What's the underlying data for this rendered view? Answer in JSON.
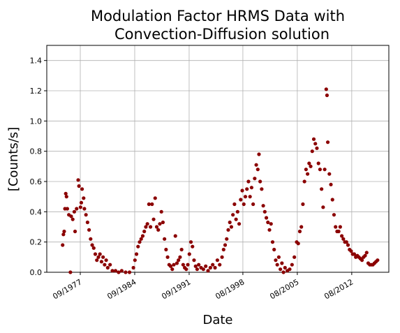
{
  "chart_data": {
    "type": "scatter",
    "title": [
      "Modulation Factor HRMS Data with",
      "Convection-Diffusion solution"
    ],
    "xlabel": "Date",
    "ylabel": "[Counts/s]",
    "color": "#8b0000",
    "grid": true,
    "xlim": [
      1973.36,
      2017.35
    ],
    "ylim": [
      0,
      1.5
    ],
    "xticks": [
      {
        "value": 1977.67,
        "label": "09/1977"
      },
      {
        "value": 1984.67,
        "label": "09/1984"
      },
      {
        "value": 1991.67,
        "label": "09/1991"
      },
      {
        "value": 1998.58,
        "label": "08/1998"
      },
      {
        "value": 2005.58,
        "label": "08/2005"
      },
      {
        "value": 2012.58,
        "label": "08/2012"
      }
    ],
    "yticks": [
      {
        "value": 0,
        "label": "0.0"
      },
      0.2,
      0.4,
      0.6,
      0.8,
      {
        "value": 1,
        "label": "1.0"
      },
      1.2,
      1.4
    ],
    "x": [
      1975.4,
      1975.5,
      1975.6,
      1975.7,
      1975.8,
      1975.9,
      1976.0,
      1976.2,
      1976.4,
      1976.5,
      1976.7,
      1976.9,
      1977.0,
      1977.2,
      1977.4,
      1977.5,
      1977.7,
      1977.8,
      1977.9,
      1978.1,
      1978.2,
      1978.4,
      1978.6,
      1978.8,
      1979.0,
      1979.2,
      1979.4,
      1979.6,
      1979.8,
      1980.0,
      1980.2,
      1980.4,
      1980.6,
      1980.8,
      1981.0,
      1981.2,
      1981.5,
      1981.8,
      1982.2,
      1982.6,
      1983.0,
      1983.5,
      1984.0,
      1984.5,
      1984.7,
      1984.9,
      1985.1,
      1985.3,
      1985.5,
      1985.7,
      1985.9,
      1986.1,
      1986.3,
      1986.5,
      1986.7,
      1986.9,
      1987.1,
      1987.3,
      1987.5,
      1987.7,
      1987.9,
      1988.1,
      1988.3,
      1988.5,
      1988.7,
      1988.9,
      1989.1,
      1989.3,
      1989.5,
      1989.7,
      1989.9,
      1990.1,
      1990.3,
      1990.5,
      1990.7,
      1990.9,
      1991.1,
      1991.3,
      1991.5,
      1991.7,
      1991.9,
      1992.1,
      1992.3,
      1992.5,
      1992.7,
      1992.9,
      1993.2,
      1993.5,
      1993.8,
      1994.1,
      1994.4,
      1994.7,
      1995.0,
      1995.3,
      1995.6,
      1995.9,
      1996.1,
      1996.3,
      1996.5,
      1996.7,
      1996.9,
      1997.1,
      1997.3,
      1997.5,
      1997.7,
      1997.9,
      1998.1,
      1998.3,
      1998.5,
      1998.7,
      1998.9,
      1999.1,
      1999.3,
      1999.5,
      1999.7,
      1999.9,
      2000.1,
      2000.3,
      2000.5,
      2000.65,
      2000.8,
      2001.0,
      2001.2,
      2001.4,
      2001.6,
      2001.8,
      2002.0,
      2002.2,
      2002.4,
      2002.6,
      2002.8,
      2003.0,
      2003.2,
      2003.4,
      2003.6,
      2003.8,
      2004.0,
      2004.3,
      2004.6,
      2004.9,
      2005.2,
      2005.5,
      2005.7,
      2005.9,
      2006.1,
      2006.3,
      2006.5,
      2006.7,
      2006.9,
      2007.1,
      2007.3,
      2007.5,
      2007.7,
      2007.9,
      2008.1,
      2008.3,
      2008.5,
      2008.7,
      2008.9,
      2009.1,
      2009.3,
      2009.4,
      2009.5,
      2009.7,
      2009.9,
      2010.1,
      2010.3,
      2010.5,
      2010.7,
      2010.9,
      2011.1,
      2011.3,
      2011.5,
      2011.7,
      2011.9,
      2012.1,
      2012.3,
      2012.5,
      2012.7,
      2012.9,
      2013.1,
      2013.3,
      2013.5,
      2013.7,
      2013.9,
      2014.1,
      2014.3,
      2014.5,
      2014.7,
      2014.9,
      2015.1,
      2015.3,
      2015.5,
      2015.7,
      2015.9
    ],
    "values": [
      0.18,
      0.25,
      0.27,
      0.42,
      0.52,
      0.5,
      0.42,
      0.38,
      0.0,
      0.37,
      0.35,
      0.4,
      0.27,
      0.42,
      0.61,
      0.57,
      0.43,
      0.46,
      0.55,
      0.49,
      0.42,
      0.38,
      0.33,
      0.28,
      0.22,
      0.18,
      0.16,
      0.12,
      0.08,
      0.1,
      0.12,
      0.07,
      0.1,
      0.05,
      0.08,
      0.03,
      0.05,
      0.01,
      0.01,
      0.0,
      0.01,
      0.0,
      0.0,
      0.03,
      0.08,
      0.12,
      0.17,
      0.2,
      0.22,
      0.24,
      0.27,
      0.3,
      0.32,
      0.45,
      0.3,
      0.45,
      0.35,
      0.49,
      0.3,
      0.28,
      0.32,
      0.4,
      0.33,
      0.22,
      0.15,
      0.1,
      0.05,
      0.04,
      0.02,
      0.05,
      0.24,
      0.06,
      0.08,
      0.1,
      0.15,
      0.05,
      0.03,
      0.02,
      0.05,
      0.12,
      0.2,
      0.17,
      0.08,
      0.04,
      0.02,
      0.05,
      0.03,
      0.02,
      0.04,
      0.01,
      0.03,
      0.05,
      0.03,
      0.08,
      0.05,
      0.1,
      0.15,
      0.18,
      0.22,
      0.28,
      0.33,
      0.3,
      0.38,
      0.45,
      0.35,
      0.4,
      0.32,
      0.48,
      0.54,
      0.45,
      0.5,
      0.55,
      0.6,
      0.5,
      0.56,
      0.45,
      0.62,
      0.71,
      0.68,
      0.78,
      0.6,
      0.55,
      0.44,
      0.4,
      0.36,
      0.33,
      0.28,
      0.32,
      0.2,
      0.15,
      0.08,
      0.05,
      0.1,
      0.02,
      0.06,
      0.0,
      0.03,
      0.01,
      0.02,
      0.05,
      0.1,
      0.2,
      0.19,
      0.27,
      0.3,
      0.45,
      0.6,
      0.68,
      0.65,
      0.72,
      0.7,
      0.8,
      0.88,
      0.85,
      0.82,
      0.72,
      0.68,
      0.55,
      0.43,
      0.68,
      1.21,
      1.17,
      0.86,
      0.65,
      0.58,
      0.48,
      0.38,
      0.3,
      0.27,
      0.27,
      0.3,
      0.24,
      0.22,
      0.2,
      0.2,
      0.18,
      0.15,
      0.14,
      0.12,
      0.12,
      0.1,
      0.11,
      0.1,
      0.09,
      0.08,
      0.1,
      0.11,
      0.13,
      0.06,
      0.05,
      0.05,
      0.05,
      0.06,
      0.07,
      0.08
    ]
  }
}
